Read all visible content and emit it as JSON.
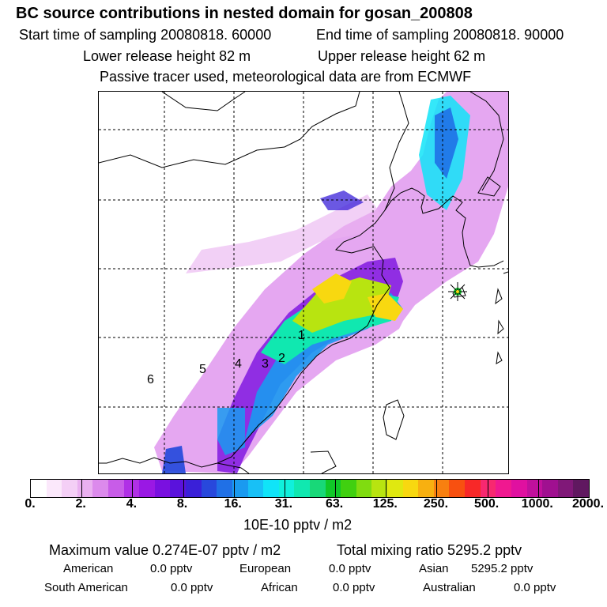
{
  "header": {
    "title": "BC  source contributions in nested domain for gosan_200808",
    "start_label": "Start time of sampling 20080818. 60000",
    "end_label": "End time of sampling 20080818. 90000",
    "lower_release": "Lower release height   82 m",
    "upper_release": "Upper release height   62 m",
    "tracer_note": "Passive tracer used, meteorological data are from ECMWF"
  },
  "map": {
    "markers": [
      "1",
      "2",
      "3",
      "4",
      "5",
      "6"
    ],
    "receptor_icon": "asterisk-star-icon"
  },
  "colorbar": {
    "ticks": [
      "0.",
      "2.",
      "4.",
      "8.",
      "16.",
      "31.",
      "63.",
      "125.",
      "250.",
      "500.",
      "1000.",
      "2000."
    ],
    "unit": "10E-10 pptv / m2",
    "colors": [
      "#ffffff",
      "#fbe8fb",
      "#f4cff6",
      "#eab0f0",
      "#dc8aec",
      "#c85ce8",
      "#b030e6",
      "#9a18e4",
      "#7a10e0",
      "#5a12dc",
      "#3a20d8",
      "#2848dc",
      "#2070e6",
      "#1a9af0",
      "#18c0f6",
      "#10e4f8",
      "#10f0dc",
      "#10e8b0",
      "#18d878",
      "#10c828",
      "#40d010",
      "#80dc10",
      "#b8e410",
      "#e0e810",
      "#f8d810",
      "#f8b010",
      "#f88010",
      "#f85010",
      "#f82828",
      "#f82870",
      "#f01890",
      "#e010a0",
      "#c0109c",
      "#a01090",
      "#801878",
      "#601860"
    ]
  },
  "footer": {
    "max_value": "Maximum value  0.274E-07 pptv / m2",
    "total_mixing": "Total mixing ratio     5295.2 pptv",
    "american_label": "American",
    "american_value": "0.0 pptv",
    "european_label": "European",
    "european_value": "0.0 pptv",
    "asian_label": "Asian",
    "asian_value": "5295.2 pptv",
    "south_american_label": "South American",
    "south_american_value": "0.0 pptv",
    "african_label": "African",
    "african_value": "0.0 pptv",
    "australian_label": "Australian",
    "australian_value": "0.0 pptv"
  }
}
